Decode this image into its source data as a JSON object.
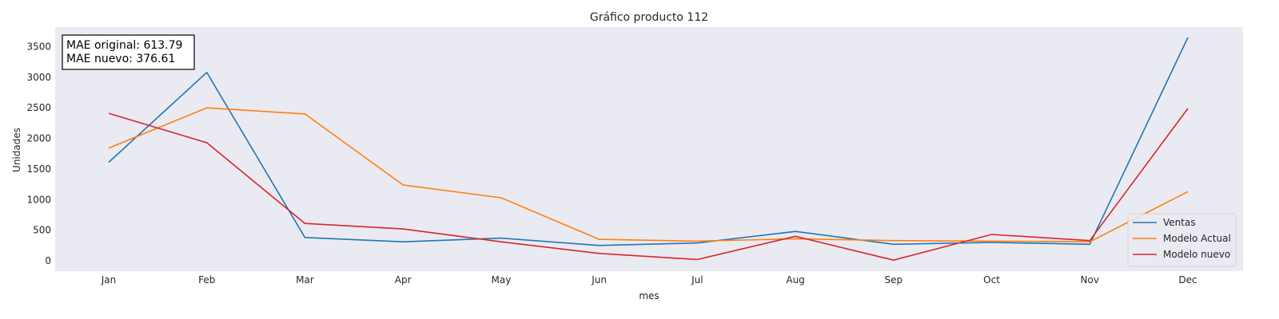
{
  "chart_data": {
    "type": "line",
    "title": "Gráfico producto 112",
    "xlabel": "mes",
    "ylabel": "Unidades",
    "categories": [
      "Jan",
      "Feb",
      "Mar",
      "Apr",
      "May",
      "Jun",
      "Jul",
      "Aug",
      "Sep",
      "Oct",
      "Nov",
      "Dec"
    ],
    "yticks": [
      0,
      500,
      1000,
      1500,
      2000,
      2500,
      3000,
      3500
    ],
    "ylim": [
      -170,
      3820
    ],
    "grid": false,
    "legend_position": "bottom-right",
    "series": [
      {
        "name": "Ventas",
        "color": "#1f77b4",
        "values": [
          1610,
          3080,
          380,
          310,
          370,
          250,
          290,
          480,
          270,
          300,
          270,
          3650
        ]
      },
      {
        "name": "Modelo Actual",
        "color": "#ff7f0e",
        "values": [
          1840,
          2500,
          2400,
          1240,
          1030,
          350,
          320,
          360,
          330,
          320,
          310,
          1130
        ]
      },
      {
        "name": "Modelo nuevo",
        "color": "#d62728",
        "values": [
          2410,
          1930,
          610,
          520,
          310,
          120,
          20,
          400,
          10,
          430,
          330,
          2490
        ]
      }
    ],
    "annotation": {
      "lines": [
        "MAE original: 613.79",
        "MAE nuevo: 376.61"
      ]
    },
    "background_color": "#eaeaf2"
  }
}
